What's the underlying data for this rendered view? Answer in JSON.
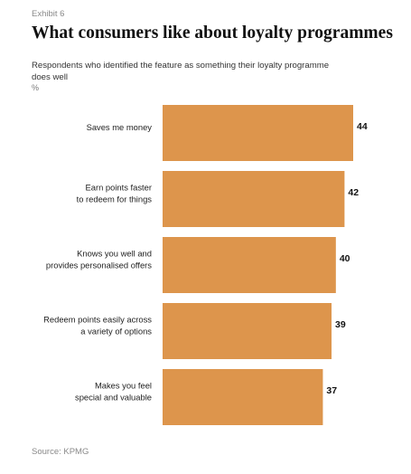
{
  "exhibit": "Exhibit 6",
  "source": "Source: KPMG",
  "colors": {
    "bar": "#dd954c"
  },
  "chart_data": {
    "type": "bar",
    "orientation": "horizontal",
    "title": "What consumers like about loyalty programmes",
    "subtitle": "Respondents who identified the feature as something their loyalty programme does well",
    "unit": "%",
    "categories": [
      [
        "Saves me money"
      ],
      [
        "Earn points faster",
        "to redeem for things"
      ],
      [
        "Knows you well and",
        "provides personalised offers"
      ],
      [
        "Redeem points easily across",
        "a variety of options"
      ],
      [
        "Makes you feel",
        "special and valuable"
      ]
    ],
    "values": [
      44,
      42,
      40,
      39,
      37
    ],
    "xlim": [
      0,
      44
    ],
    "grid": false,
    "legend": "none"
  }
}
